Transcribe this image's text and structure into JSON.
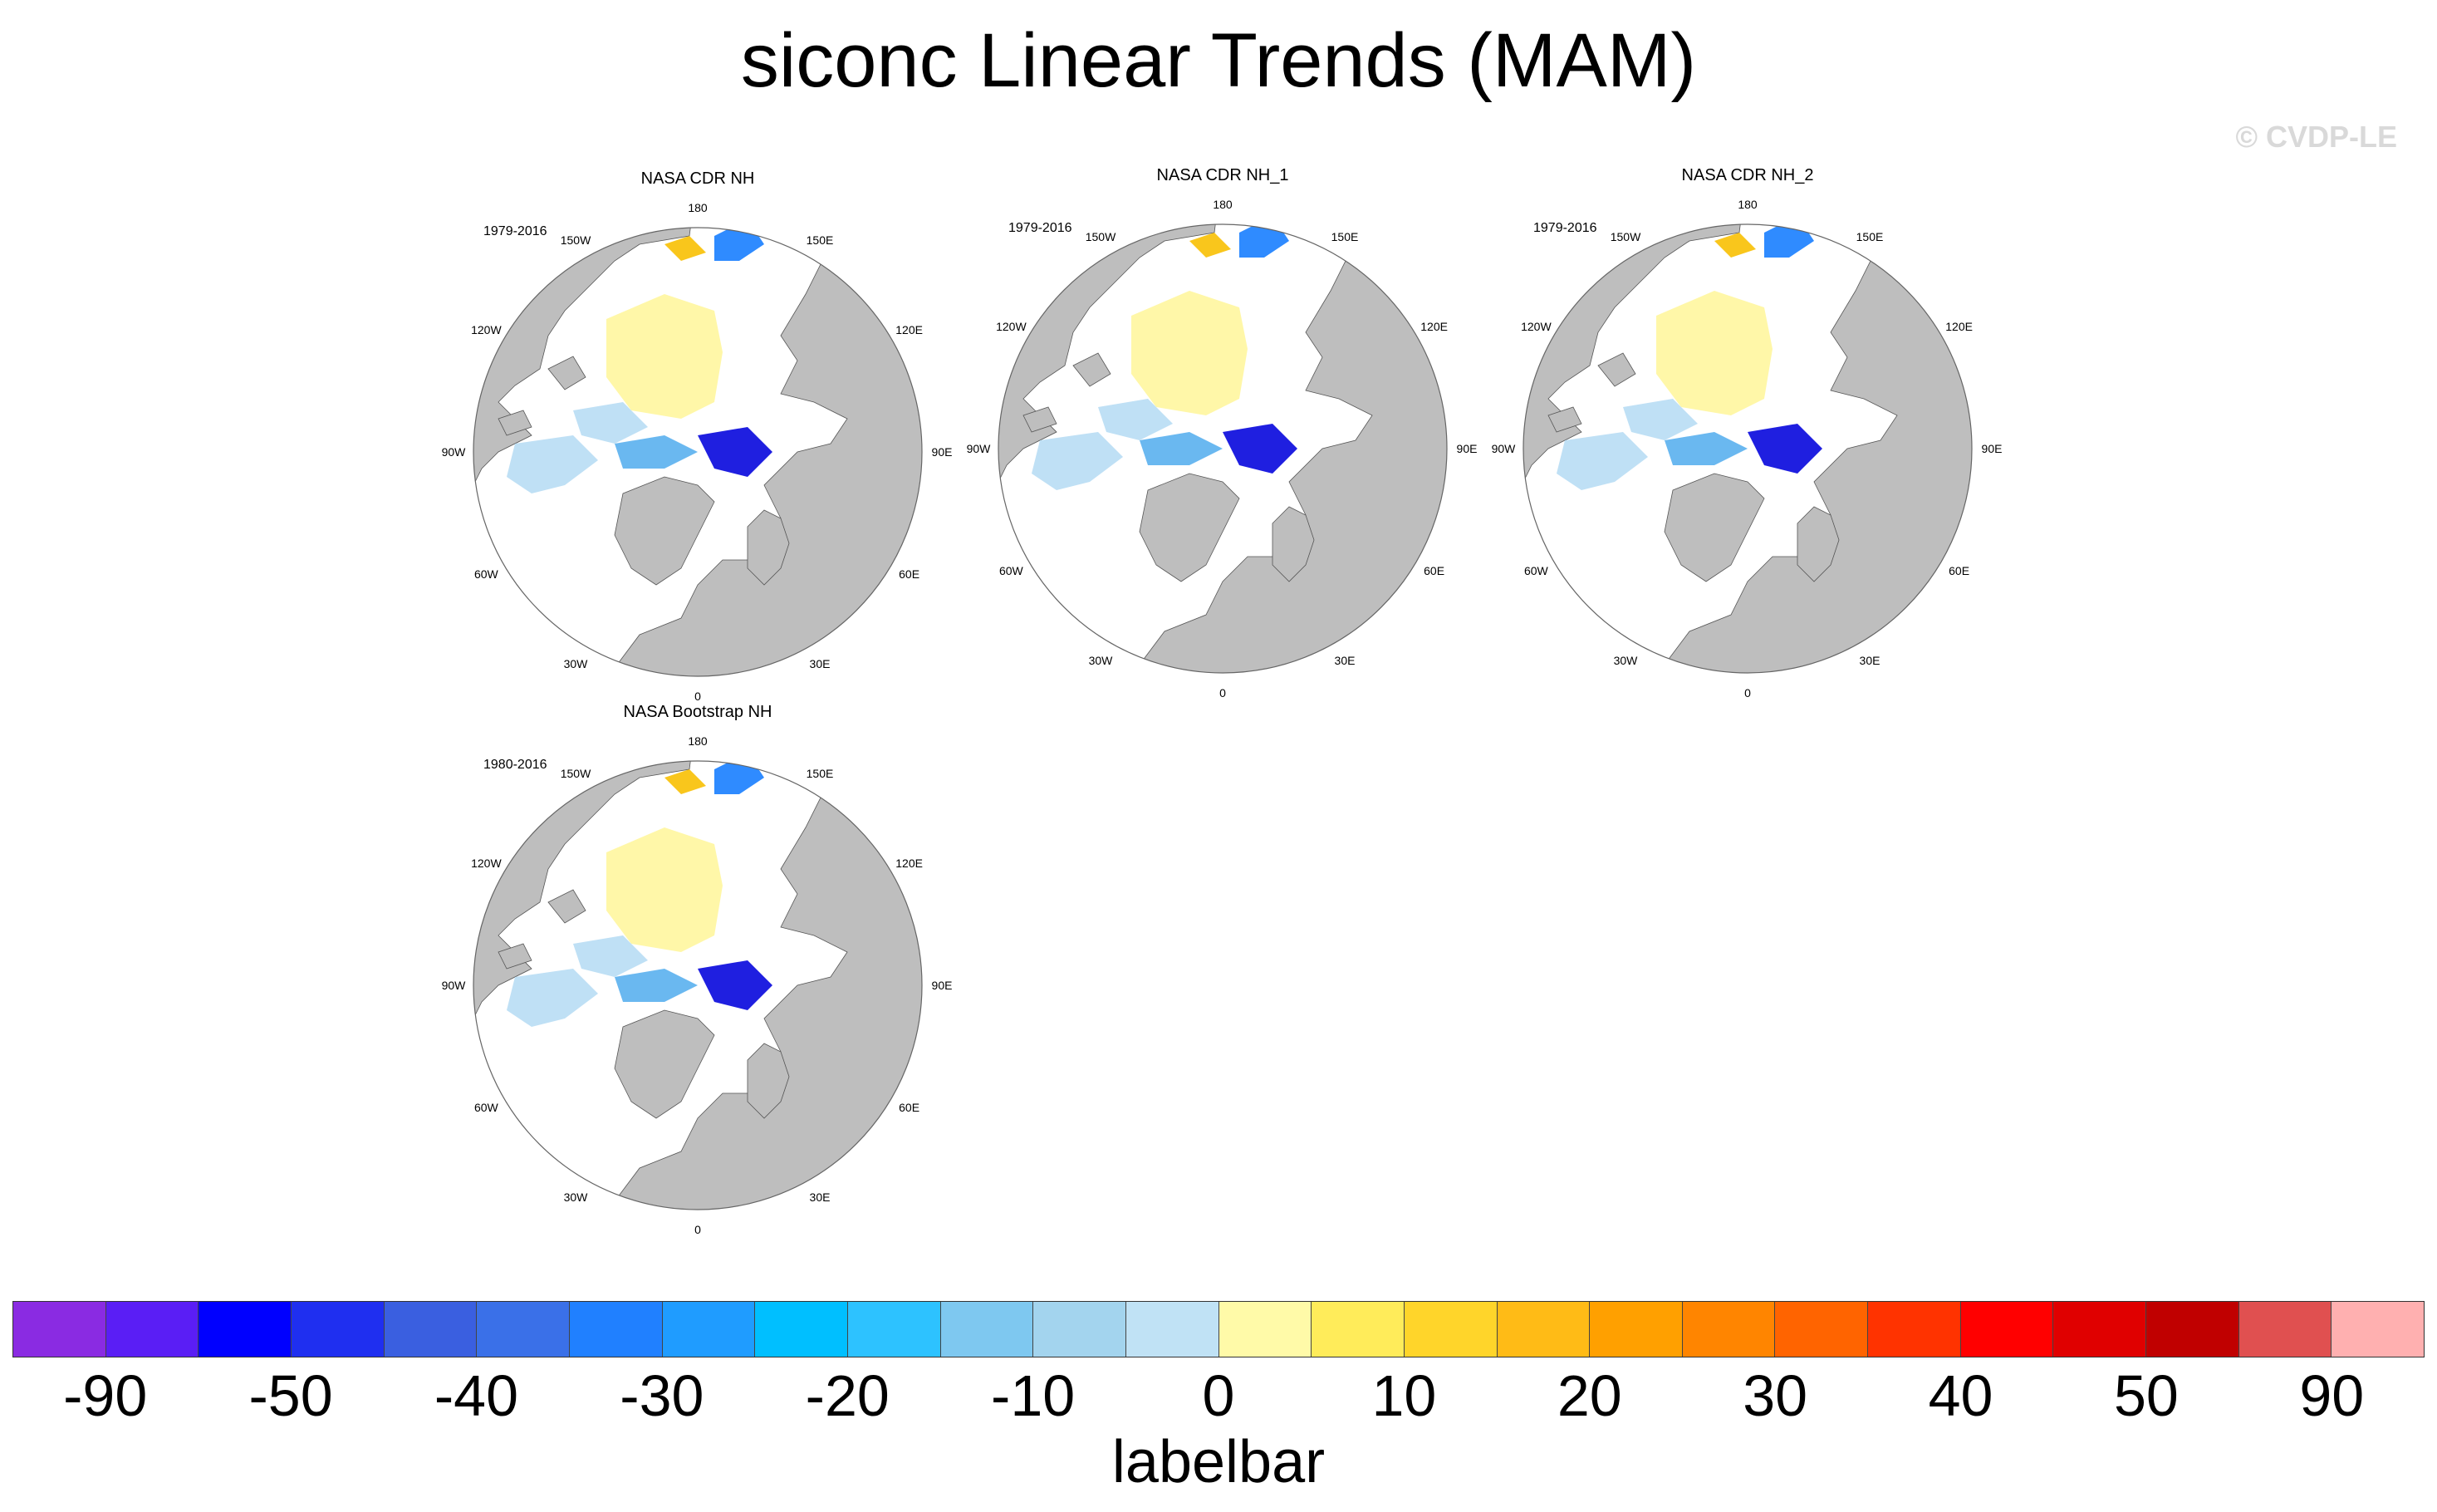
{
  "title": "siconc Linear Trends (MAM)",
  "credit": "© CVDP-LE",
  "lon_labels": [
    "180",
    "150E",
    "120E",
    "90E",
    "60E",
    "30E",
    "0",
    "30W",
    "60W",
    "90W",
    "120W",
    "150W"
  ],
  "panels": [
    {
      "name": "NASA CDR NH",
      "period": "1979-2016"
    },
    {
      "name": "NASA CDR NH_1",
      "period": "1979-2016"
    },
    {
      "name": "NASA CDR NH_2",
      "period": "1979-2016"
    },
    {
      "name": "NASA Bootstrap NH",
      "period": "1980-2016"
    }
  ],
  "colors": {
    "land": "#bebebe",
    "ocean": "#ffffff",
    "trend_zero_pos": "#fff7a8",
    "trend_zero_neg": "#bfe0f5",
    "trend_neg_strong": "#1f1fe0",
    "trend_pos_strong": "#f9c61c"
  },
  "labelbar": {
    "title": "labelbar",
    "colors": [
      "#8a2be2",
      "#5a1ef5",
      "#0000ff",
      "#1f2ff0",
      "#3a5fe0",
      "#3a70e8",
      "#2080ff",
      "#1f9cff",
      "#00bfff",
      "#2dc2ff",
      "#7ec8f0",
      "#a3d4ee",
      "#c0e2f5",
      "#fffaa8",
      "#ffec5a",
      "#ffd52a",
      "#ffbb16",
      "#ffa000",
      "#ff8500",
      "#ff6400",
      "#ff3300",
      "#ff0000",
      "#e00000",
      "#c00000",
      "#e05050",
      "#ffb0b0"
    ],
    "tick_labels": [
      "-90",
      "-50",
      "-40",
      "-30",
      "-20",
      "-10",
      "0",
      "10",
      "20",
      "30",
      "40",
      "50",
      "90"
    ]
  }
}
